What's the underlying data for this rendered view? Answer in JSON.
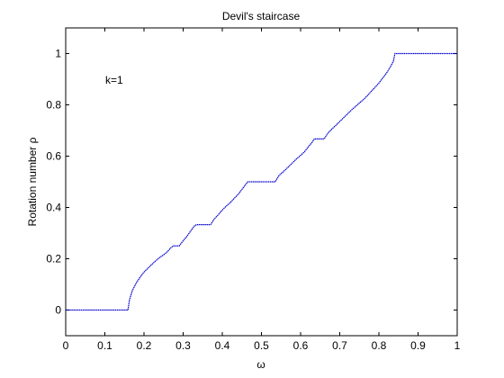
{
  "chart_data": {
    "type": "line",
    "title": "Devil's staircase",
    "xlabel": "ω",
    "ylabel": "Rotation number ρ",
    "annotation": "k=1",
    "xlim": [
      0,
      1
    ],
    "ylim": [
      -0.1,
      1.1
    ],
    "xticks": [
      0,
      0.1,
      0.2,
      0.3,
      0.4,
      0.5,
      0.6,
      0.7,
      0.8,
      0.9,
      1
    ],
    "xtick_labels": [
      "0",
      "0.1",
      "0.2",
      "0.3",
      "0.4",
      "0.5",
      "0.6",
      "0.7",
      "0.8",
      "0.9",
      "1"
    ],
    "yticks": [
      0,
      0.2,
      0.4,
      0.6,
      0.8,
      1
    ],
    "ytick_labels": [
      "0",
      "0.2",
      "0.4",
      "0.6",
      "0.8",
      "1"
    ],
    "grid": false,
    "series": [
      {
        "color": "#0000cc",
        "x": [
          0,
          0.159,
          0.163,
          0.17,
          0.18,
          0.19,
          0.2,
          0.21,
          0.22,
          0.23,
          0.24,
          0.25,
          0.26,
          0.27,
          0.275,
          0.29,
          0.3,
          0.31,
          0.32,
          0.33,
          0.335,
          0.37,
          0.38,
          0.39,
          0.4,
          0.41,
          0.42,
          0.43,
          0.44,
          0.45,
          0.465,
          0.535,
          0.545,
          0.56,
          0.57,
          0.58,
          0.59,
          0.6,
          0.61,
          0.62,
          0.63,
          0.635,
          0.66,
          0.67,
          0.68,
          0.69,
          0.7,
          0.71,
          0.72,
          0.73,
          0.74,
          0.75,
          0.76,
          0.77,
          0.78,
          0.79,
          0.8,
          0.81,
          0.82,
          0.83,
          0.837,
          0.841,
          1
        ],
        "y": [
          0,
          0,
          0.04,
          0.075,
          0.105,
          0.128,
          0.148,
          0.163,
          0.178,
          0.192,
          0.205,
          0.215,
          0.228,
          0.245,
          0.25,
          0.25,
          0.27,
          0.288,
          0.31,
          0.33,
          0.333,
          0.333,
          0.356,
          0.372,
          0.39,
          0.405,
          0.418,
          0.435,
          0.45,
          0.47,
          0.5,
          0.5,
          0.525,
          0.545,
          0.56,
          0.575,
          0.59,
          0.603,
          0.617,
          0.637,
          0.655,
          0.667,
          0.667,
          0.69,
          0.706,
          0.72,
          0.735,
          0.75,
          0.765,
          0.78,
          0.793,
          0.807,
          0.82,
          0.835,
          0.852,
          0.868,
          0.885,
          0.905,
          0.925,
          0.95,
          0.97,
          1,
          1
        ]
      }
    ]
  }
}
